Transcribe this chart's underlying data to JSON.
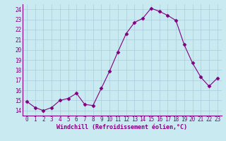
{
  "x": [
    0,
    1,
    2,
    3,
    4,
    5,
    6,
    7,
    8,
    9,
    10,
    11,
    12,
    13,
    14,
    15,
    16,
    17,
    18,
    19,
    20,
    21,
    22,
    23
  ],
  "y": [
    14.9,
    14.3,
    14.0,
    14.3,
    15.0,
    15.2,
    15.7,
    14.6,
    14.5,
    16.2,
    17.9,
    19.8,
    21.6,
    22.7,
    23.1,
    24.1,
    23.8,
    23.4,
    22.9,
    20.5,
    18.7,
    17.3,
    16.4,
    17.2
  ],
  "line_color": "#800080",
  "marker": "D",
  "marker_size": 2.5,
  "bg_color": "#c8eaf0",
  "grid_color": "#aaccdd",
  "xlabel": "Windchill (Refroidissement éolien,°C)",
  "ylim": [
    13.5,
    24.5
  ],
  "yticks": [
    14,
    15,
    16,
    17,
    18,
    19,
    20,
    21,
    22,
    23,
    24
  ],
  "xticks": [
    0,
    1,
    2,
    3,
    4,
    5,
    6,
    7,
    8,
    9,
    10,
    11,
    12,
    13,
    14,
    15,
    16,
    17,
    18,
    19,
    20,
    21,
    22,
    23
  ],
  "tick_color": "#800080",
  "axis_color": "#800080",
  "xlabel_color": "#800080",
  "tick_fontsize": 5.5,
  "xlabel_fontsize": 6.0
}
